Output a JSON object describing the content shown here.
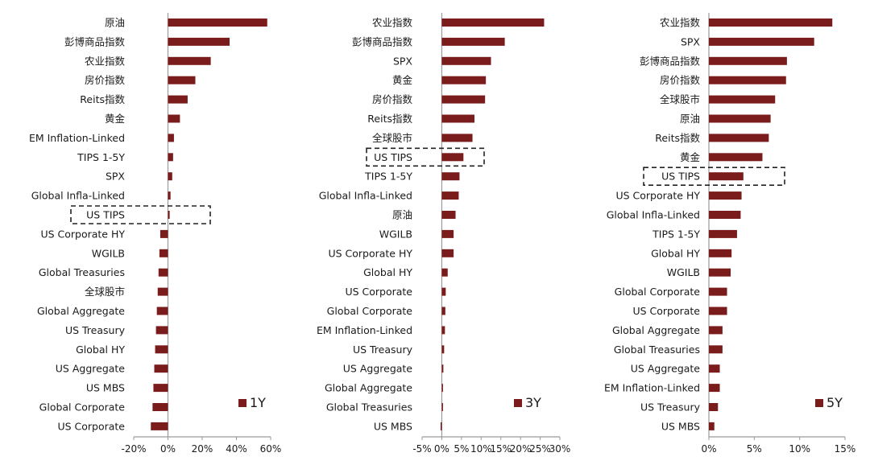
{
  "chart_data": [
    {
      "type": "bar",
      "orientation": "horizontal",
      "legend": "1Y",
      "color": "#7b1c1c",
      "highlight": "US TIPS",
      "xlim": [
        -20,
        60
      ],
      "xticks": [
        -20,
        0,
        20,
        40,
        60
      ],
      "tick_suffix": "%",
      "categories": [
        "原油",
        "彭博商品指数",
        "农业指数",
        "房价指数",
        "Reits指数",
        "黄金",
        "EM Inflation-Linked",
        "TIPS 1-5Y",
        "SPX",
        "Global Infla-Linked",
        "US TIPS",
        "US Corporate HY",
        "WGILB",
        "Global Treasuries",
        "全球股市",
        "Global Aggregate",
        "US Treasury",
        "Global HY",
        "US Aggregate",
        "US MBS",
        "Global Corporate",
        "US Corporate"
      ],
      "values": [
        58,
        36,
        25,
        16,
        11.5,
        7,
        3.5,
        3,
        2.5,
        1.5,
        1,
        -4.5,
        -5,
        -5.5,
        -6,
        -6.5,
        -7,
        -7.5,
        -8,
        -8.5,
        -9,
        -10
      ]
    },
    {
      "type": "bar",
      "orientation": "horizontal",
      "legend": "3Y",
      "color": "#7b1c1c",
      "highlight": "US TIPS",
      "xlim": [
        -5,
        30
      ],
      "xticks": [
        -5,
        0,
        5,
        10,
        15,
        20,
        25,
        30
      ],
      "tick_suffix": "%",
      "categories": [
        "农业指数",
        "彭博商品指数",
        "SPX",
        "黄金",
        "房价指数",
        "Reits指数",
        "全球股市",
        "US TIPS",
        "TIPS 1-5Y",
        "Global Infla-Linked",
        "原油",
        "WGILB",
        "US Corporate HY",
        "Global HY",
        "US Corporate",
        "Global Corporate",
        "EM Inflation-Linked",
        "US Treasury",
        "US Aggregate",
        "Global Aggregate",
        "Global Treasuries",
        "US MBS"
      ],
      "values": [
        26,
        16,
        12.5,
        11.2,
        11,
        8.3,
        7.8,
        5.5,
        4.5,
        4.3,
        3.5,
        3,
        3,
        1.5,
        1,
        0.9,
        0.8,
        0.6,
        0.4,
        0.3,
        0.2,
        -0.3
      ]
    },
    {
      "type": "bar",
      "orientation": "horizontal",
      "legend": "5Y",
      "color": "#7b1c1c",
      "highlight": "US TIPS",
      "xlim": [
        0,
        15
      ],
      "xticks": [
        0,
        5,
        10,
        15
      ],
      "tick_suffix": "%",
      "categories": [
        "农业指数",
        "SPX",
        "彭博商品指数",
        "房价指数",
        "全球股市",
        "原油",
        "Reits指数",
        "黄金",
        "US TIPS",
        "US Corporate HY",
        "Global Infla-Linked",
        "TIPS 1-5Y",
        "Global HY",
        "WGILB",
        "Global Corporate",
        "US Corporate",
        "Global Aggregate",
        "Global Treasuries",
        "US Aggregate",
        "EM Inflation-Linked",
        "US Treasury",
        "US MBS"
      ],
      "values": [
        13.6,
        11.6,
        8.6,
        8.5,
        7.3,
        6.8,
        6.6,
        5.9,
        3.8,
        3.6,
        3.5,
        3.1,
        2.5,
        2.4,
        2,
        2,
        1.5,
        1.5,
        1.2,
        1.2,
        1,
        0.6
      ]
    }
  ]
}
